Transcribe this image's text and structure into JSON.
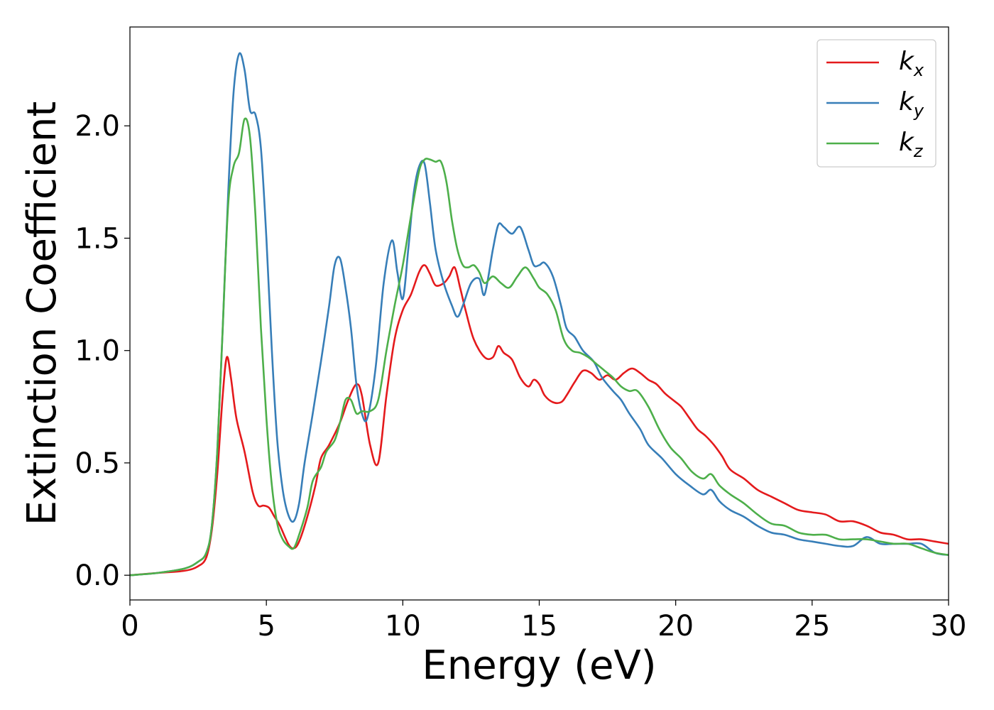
{
  "chart_data": {
    "type": "line",
    "xlabel": "Energy (eV)",
    "ylabel": "Extinction Coefficient",
    "xlim": [
      0,
      30
    ],
    "ylim": [
      -0.11,
      2.44
    ],
    "xticks": [
      0,
      5,
      10,
      15,
      20,
      25,
      30
    ],
    "xtick_labels": [
      "0",
      "5",
      "10",
      "15",
      "20",
      "25",
      "30"
    ],
    "yticks": [
      0.0,
      0.5,
      1.0,
      1.5,
      2.0
    ],
    "ytick_labels": [
      "0.0",
      "0.5",
      "1.0",
      "1.5",
      "2.0"
    ],
    "grid": false,
    "legend_position": "top-right",
    "series": [
      {
        "name": "k",
        "subscript": "x",
        "color": "#e41a1c",
        "x": [
          0,
          1,
          2,
          2.5,
          2.8,
          3.0,
          3.2,
          3.4,
          3.55,
          3.7,
          3.9,
          4.2,
          4.5,
          4.7,
          4.9,
          5.1,
          5.3,
          5.5,
          5.8,
          6.0,
          6.2,
          6.5,
          6.8,
          7.0,
          7.3,
          7.7,
          8.0,
          8.3,
          8.5,
          8.8,
          9.1,
          9.4,
          9.7,
          10.0,
          10.3,
          10.6,
          10.8,
          11.0,
          11.2,
          11.5,
          11.7,
          11.9,
          12.1,
          12.3,
          12.6,
          13.0,
          13.3,
          13.5,
          13.7,
          14.0,
          14.3,
          14.6,
          14.8,
          15.0,
          15.2,
          15.5,
          15.8,
          16.0,
          16.3,
          16.6,
          16.9,
          17.2,
          17.5,
          17.8,
          18.1,
          18.4,
          18.7,
          19.0,
          19.3,
          19.6,
          19.9,
          20.2,
          20.5,
          20.8,
          21.1,
          21.4,
          21.7,
          22.0,
          22.5,
          23.0,
          23.5,
          24.0,
          24.5,
          25.0,
          25.5,
          26.0,
          26.5,
          27.0,
          27.5,
          28.0,
          28.5,
          29.0,
          29.5,
          30.0
        ],
        "y": [
          0.0,
          0.01,
          0.02,
          0.04,
          0.08,
          0.2,
          0.45,
          0.8,
          0.97,
          0.88,
          0.7,
          0.55,
          0.37,
          0.31,
          0.31,
          0.3,
          0.26,
          0.22,
          0.14,
          0.12,
          0.15,
          0.26,
          0.4,
          0.52,
          0.58,
          0.68,
          0.78,
          0.85,
          0.8,
          0.58,
          0.5,
          0.8,
          1.05,
          1.18,
          1.25,
          1.35,
          1.38,
          1.34,
          1.29,
          1.3,
          1.33,
          1.37,
          1.28,
          1.18,
          1.05,
          0.97,
          0.97,
          1.02,
          0.99,
          0.96,
          0.88,
          0.84,
          0.87,
          0.85,
          0.8,
          0.77,
          0.77,
          0.8,
          0.86,
          0.91,
          0.9,
          0.87,
          0.89,
          0.87,
          0.9,
          0.92,
          0.9,
          0.87,
          0.85,
          0.81,
          0.78,
          0.75,
          0.7,
          0.65,
          0.62,
          0.58,
          0.53,
          0.47,
          0.43,
          0.38,
          0.35,
          0.32,
          0.29,
          0.28,
          0.27,
          0.24,
          0.24,
          0.22,
          0.19,
          0.18,
          0.16,
          0.16,
          0.15,
          0.14
        ]
      },
      {
        "name": "k",
        "subscript": "y",
        "color": "#377eb8",
        "x": [
          0,
          1,
          2,
          2.5,
          2.8,
          3.0,
          3.2,
          3.4,
          3.6,
          3.8,
          4.0,
          4.2,
          4.4,
          4.6,
          4.8,
          5.0,
          5.2,
          5.4,
          5.6,
          5.8,
          6.0,
          6.2,
          6.4,
          6.7,
          7.0,
          7.3,
          7.5,
          7.7,
          7.9,
          8.1,
          8.3,
          8.5,
          8.7,
          9.0,
          9.3,
          9.6,
          9.8,
          10.0,
          10.2,
          10.4,
          10.6,
          10.8,
          11.0,
          11.2,
          11.5,
          11.8,
          12.0,
          12.2,
          12.5,
          12.8,
          13.0,
          13.3,
          13.5,
          13.7,
          14.0,
          14.3,
          14.6,
          14.8,
          15.0,
          15.2,
          15.5,
          15.8,
          16.0,
          16.3,
          16.6,
          17.0,
          17.3,
          17.7,
          18.0,
          18.3,
          18.7,
          19.0,
          19.5,
          20.0,
          20.5,
          21.0,
          21.3,
          21.6,
          22.0,
          22.5,
          23.0,
          23.5,
          24.0,
          24.5,
          25.0,
          25.5,
          26.0,
          26.5,
          27.0,
          27.5,
          28.0,
          28.5,
          29.0,
          29.5,
          30.0
        ],
        "y": [
          0.0,
          0.01,
          0.03,
          0.06,
          0.1,
          0.22,
          0.55,
          1.1,
          1.7,
          2.15,
          2.32,
          2.25,
          2.07,
          2.05,
          1.9,
          1.5,
          1.0,
          0.6,
          0.38,
          0.27,
          0.24,
          0.32,
          0.5,
          0.72,
          0.95,
          1.2,
          1.38,
          1.41,
          1.28,
          1.1,
          0.85,
          0.72,
          0.7,
          0.92,
          1.3,
          1.49,
          1.35,
          1.23,
          1.45,
          1.7,
          1.82,
          1.83,
          1.65,
          1.45,
          1.3,
          1.2,
          1.15,
          1.2,
          1.3,
          1.32,
          1.25,
          1.45,
          1.56,
          1.55,
          1.52,
          1.55,
          1.45,
          1.38,
          1.38,
          1.39,
          1.33,
          1.2,
          1.1,
          1.06,
          1.0,
          0.95,
          0.88,
          0.82,
          0.78,
          0.72,
          0.65,
          0.58,
          0.52,
          0.45,
          0.4,
          0.36,
          0.38,
          0.33,
          0.29,
          0.26,
          0.22,
          0.19,
          0.18,
          0.16,
          0.15,
          0.14,
          0.13,
          0.13,
          0.17,
          0.14,
          0.14,
          0.14,
          0.14,
          0.1,
          0.09
        ]
      },
      {
        "name": "k",
        "subscript": "z",
        "color": "#4daf4a",
        "x": [
          0,
          1,
          2,
          2.5,
          2.8,
          3.0,
          3.2,
          3.4,
          3.6,
          3.8,
          4.0,
          4.2,
          4.4,
          4.6,
          4.8,
          5.0,
          5.2,
          5.4,
          5.6,
          5.8,
          6.0,
          6.2,
          6.5,
          6.7,
          7.0,
          7.2,
          7.5,
          7.7,
          7.9,
          8.1,
          8.3,
          8.5,
          8.8,
          9.1,
          9.4,
          9.7,
          10.0,
          10.3,
          10.6,
          10.8,
          11.0,
          11.2,
          11.4,
          11.6,
          11.8,
          12.0,
          12.2,
          12.4,
          12.6,
          12.8,
          13.0,
          13.3,
          13.6,
          13.9,
          14.2,
          14.5,
          14.8,
          15.0,
          15.3,
          15.6,
          15.9,
          16.2,
          16.5,
          16.8,
          17.1,
          17.4,
          17.7,
          18.0,
          18.3,
          18.6,
          19.0,
          19.4,
          19.8,
          20.2,
          20.6,
          21.0,
          21.3,
          21.6,
          22.0,
          22.5,
          23.0,
          23.5,
          24.0,
          24.5,
          25.0,
          25.5,
          26.0,
          26.5,
          27.0,
          27.5,
          28.0,
          28.5,
          29.0,
          29.5,
          30.0
        ],
        "y": [
          0.0,
          0.01,
          0.03,
          0.06,
          0.1,
          0.22,
          0.55,
          1.1,
          1.65,
          1.82,
          1.88,
          2.03,
          1.95,
          1.6,
          1.1,
          0.7,
          0.4,
          0.23,
          0.16,
          0.13,
          0.12,
          0.18,
          0.3,
          0.42,
          0.48,
          0.55,
          0.6,
          0.68,
          0.78,
          0.78,
          0.72,
          0.73,
          0.73,
          0.78,
          1.0,
          1.2,
          1.38,
          1.6,
          1.8,
          1.85,
          1.85,
          1.84,
          1.84,
          1.75,
          1.58,
          1.45,
          1.38,
          1.37,
          1.38,
          1.35,
          1.3,
          1.33,
          1.3,
          1.28,
          1.33,
          1.37,
          1.32,
          1.28,
          1.25,
          1.18,
          1.05,
          1.0,
          0.99,
          0.97,
          0.94,
          0.91,
          0.88,
          0.84,
          0.82,
          0.82,
          0.75,
          0.65,
          0.57,
          0.52,
          0.46,
          0.43,
          0.45,
          0.4,
          0.36,
          0.32,
          0.27,
          0.23,
          0.22,
          0.19,
          0.18,
          0.18,
          0.16,
          0.16,
          0.16,
          0.15,
          0.14,
          0.14,
          0.12,
          0.1,
          0.09
        ]
      }
    ]
  }
}
